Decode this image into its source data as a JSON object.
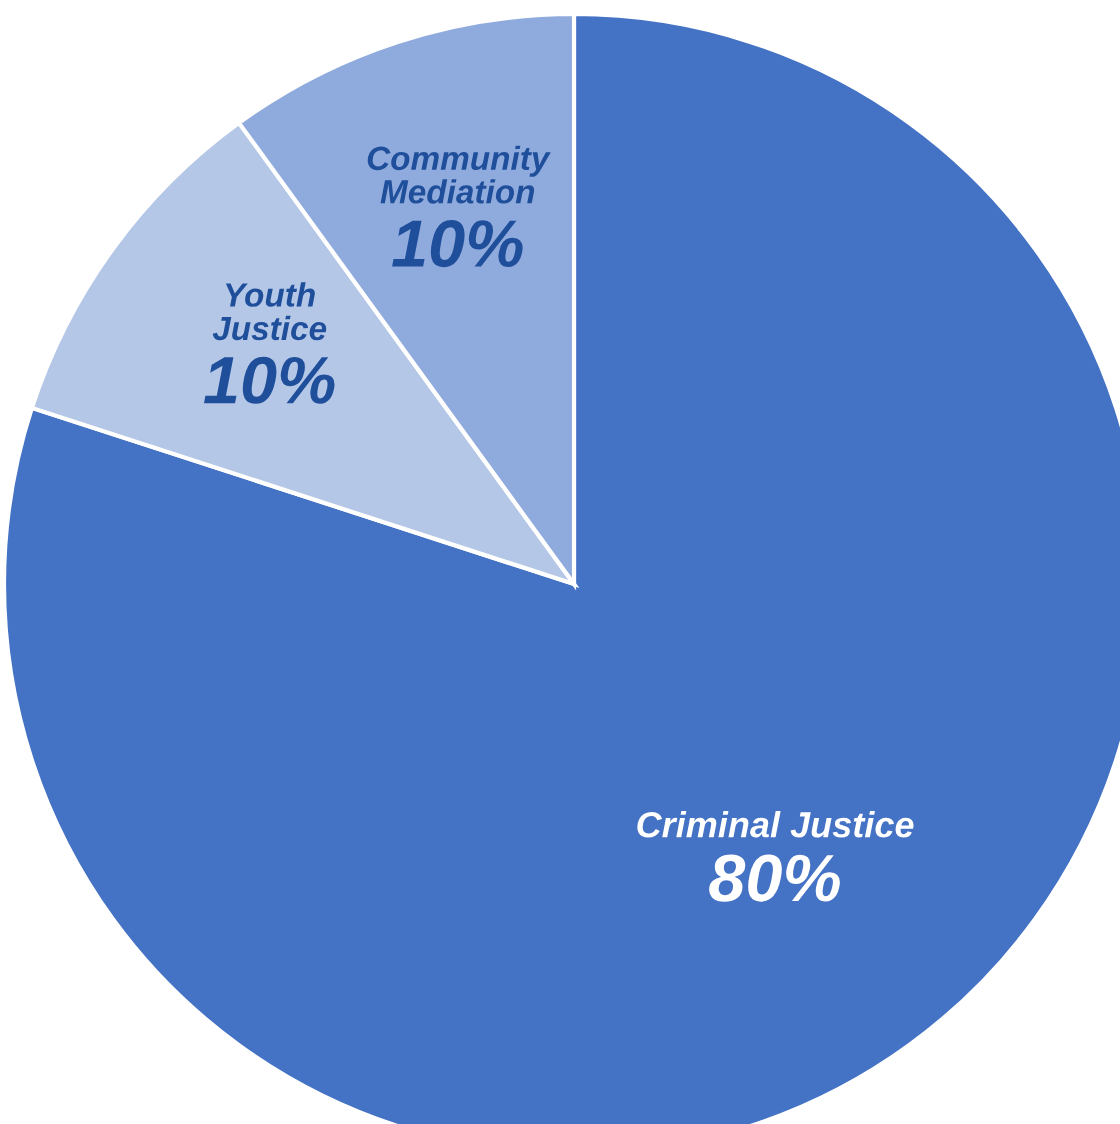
{
  "chart_data": {
    "type": "pie",
    "categories": [
      "Criminal Justice",
      "Youth Justice",
      "Community Mediation"
    ],
    "values": [
      80,
      10,
      10
    ],
    "colors": [
      "#4472c4",
      "#b4c7e7",
      "#8faadc"
    ],
    "value_labels": [
      "80%",
      "10%",
      "10%"
    ]
  }
}
